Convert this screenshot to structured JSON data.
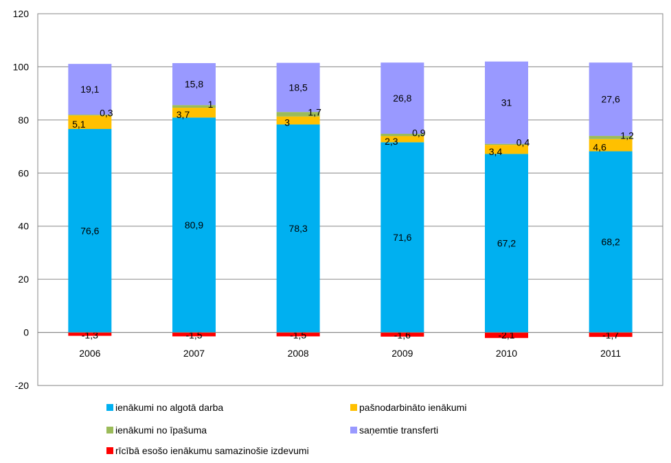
{
  "chart_data": {
    "type": "bar",
    "stacked": true,
    "categories": [
      "2006",
      "2007",
      "2008",
      "2009",
      "2010",
      "2011"
    ],
    "ylim": [
      -20,
      120
    ],
    "yticks": [
      -20,
      0,
      20,
      40,
      60,
      80,
      100,
      120
    ],
    "grid": true,
    "legend_position": "bottom",
    "series": [
      {
        "name": "ienākumi no algotā darba",
        "color": "#00B0F0",
        "values": [
          76.6,
          80.9,
          78.3,
          71.6,
          67.2,
          68.2
        ],
        "labels": [
          "76,6",
          "80,9",
          "78,3",
          "71,6",
          "67,2",
          "68,2"
        ]
      },
      {
        "name": "pašnodarbināto ienākumi",
        "color": "#FFC000",
        "values": [
          5.1,
          3.7,
          3.0,
          2.3,
          3.4,
          4.6
        ],
        "labels": [
          "5,1",
          "3,7",
          "3",
          "2,3",
          "3,4",
          "4,6"
        ]
      },
      {
        "name": "ienākumi no īpašuma",
        "color": "#9BBB59",
        "values": [
          0.3,
          1.0,
          1.7,
          0.9,
          0.4,
          1.2
        ],
        "labels": [
          "0,3",
          "1",
          "1,7",
          "0,9",
          "0,4",
          "1,2"
        ]
      },
      {
        "name": "saņemtie transferti",
        "color": "#9999FF",
        "values": [
          19.1,
          15.8,
          18.5,
          26.8,
          31.0,
          27.6
        ],
        "labels": [
          "19,1",
          "15,8",
          "18,5",
          "26,8",
          "31",
          "27,6"
        ]
      },
      {
        "name": "rīcībā esošo ienākumu samazinošie izdevumi",
        "color": "#FF0000",
        "values": [
          -1.3,
          -1.5,
          -1.5,
          -1.6,
          -2.1,
          -1.7
        ],
        "labels": [
          "-1,3",
          "-1,5",
          "-1,5",
          "-1,6",
          "-2,1",
          "-1,7"
        ]
      }
    ]
  }
}
